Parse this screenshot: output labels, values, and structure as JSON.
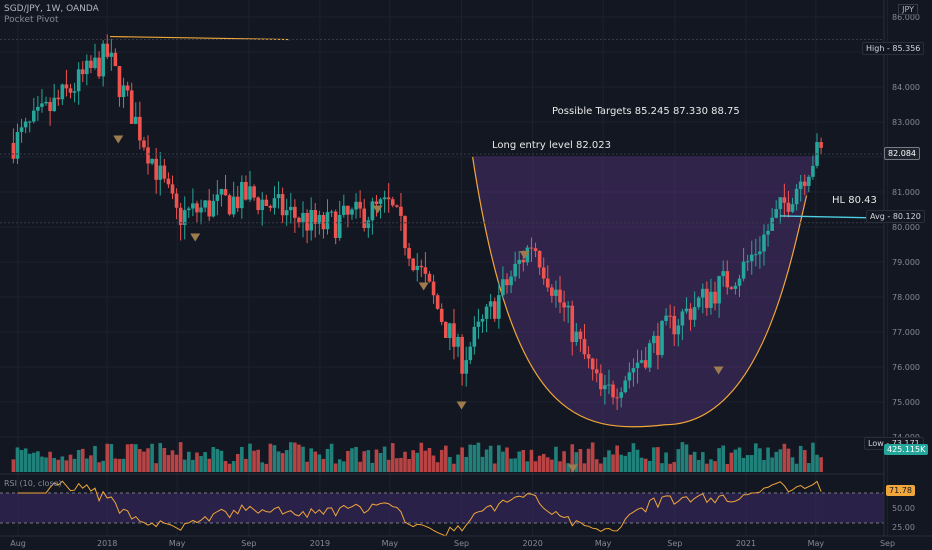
{
  "header": {
    "title": "SGD/JPY, 1W, OANDA",
    "indicator": "Pocket Pivot",
    "currency_button": "JPY"
  },
  "annotations": {
    "targets": "Possible Targets  85.245  87.330  88.75",
    "entry": "Long entry level 82.023",
    "hl": "HL 80.43"
  },
  "price_tags": {
    "high_label": "High",
    "high_value": "85.356",
    "last_value": "82.084",
    "avg_label": "Avg",
    "avg_value": "80.120",
    "low_label": "Low",
    "low_value": "73.171",
    "volume_value": "425.115K",
    "rsi_value": "71.78"
  },
  "rsi_panel": {
    "label": "RSI (10, close)"
  },
  "colors": {
    "up": "#26a69a",
    "down": "#ef5350",
    "background": "#131722",
    "cup_fill": "#4a2f6e",
    "rsi_line": "#f0a63a",
    "triangle": "#9c7b4f"
  },
  "chart_data": [
    {
      "type": "candlestick",
      "title": "SGD/JPY, 1W, OANDA",
      "x_tick_labels": [
        "Aug",
        "2018",
        "May",
        "Sep",
        "2019",
        "May",
        "Sep",
        "2020",
        "May",
        "Sep",
        "2021",
        "May",
        "Sep"
      ],
      "y_tick_labels": [
        "74.000",
        "75.000",
        "76.000",
        "77.000",
        "78.000",
        "79.000",
        "80.000",
        "81.000",
        "82.000",
        "83.000",
        "84.000",
        "85.000",
        "86.000"
      ],
      "ylim": [
        73.0,
        86.2
      ],
      "anchors": {
        "x": [
          "2017-07-24",
          "2018-01-01",
          "2018-05-01",
          "2018-09-01",
          "2019-01-01",
          "2019-05-01",
          "2019-09-01",
          "2020-01-01",
          "2020-05-01",
          "2020-09-01",
          "2021-01-01",
          "2021-05-01"
        ],
        "close": [
          82.4,
          84.9,
          80.3,
          80.9,
          80.0,
          80.6,
          76.2,
          79.6,
          75.1,
          77.3,
          78.9,
          82.08
        ]
      },
      "series_levels": {
        "high": 85.356,
        "low": 73.171,
        "avg": 80.12,
        "last": 82.084,
        "long_entry": 82.023,
        "higher_low": 80.43,
        "targets": [
          85.245,
          87.33,
          88.75
        ]
      },
      "cup": {
        "start": [
          "2019-09-20",
          82.0
        ],
        "bottom": [
          "2020-08-15",
          74.35
        ],
        "end": [
          "2021-04-15",
          80.9
        ]
      },
      "pocket_pivot_markers": [
        [
          "2018-01-20",
          82.5
        ],
        [
          "2018-06-01",
          79.7
        ],
        [
          "2019-04-10",
          80.5
        ],
        [
          "2019-06-28",
          78.3
        ],
        [
          "2019-09-01",
          74.9
        ],
        [
          "2019-12-18",
          79.2
        ],
        [
          "2020-03-10",
          73.1
        ],
        [
          "2020-11-15",
          75.9
        ]
      ]
    },
    {
      "type": "line",
      "title": "RSI (10, close)",
      "y_tick_labels": [
        "25.00",
        "50.00",
        "75.00"
      ],
      "ylim": [
        18,
        90
      ],
      "guides": [
        70,
        30
      ],
      "last": 71.78
    }
  ]
}
